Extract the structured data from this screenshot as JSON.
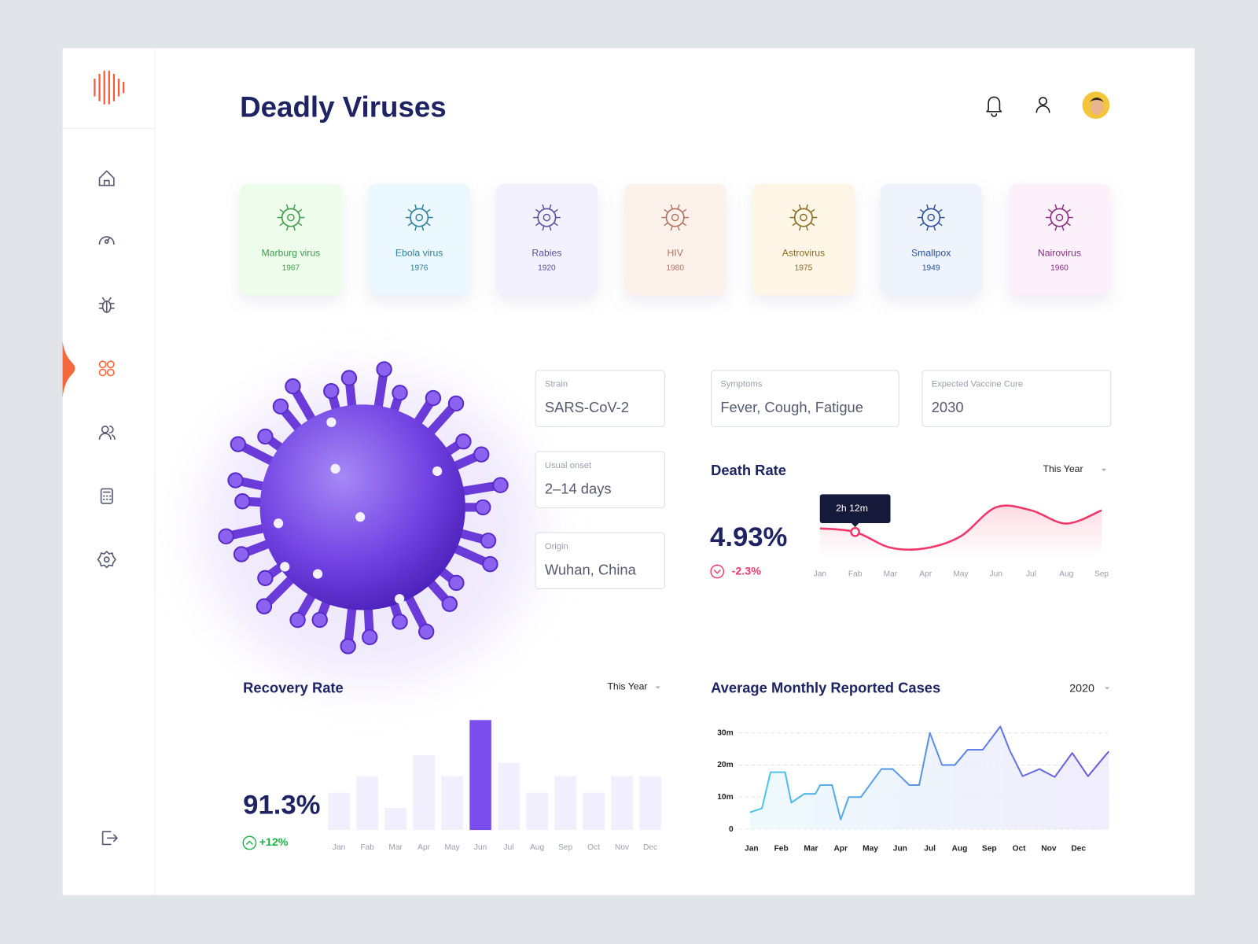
{
  "header": {
    "title": "Deadly Viruses"
  },
  "viruses": [
    {
      "name": "Marburg virus",
      "year": 1967,
      "color": "#3f9d4b",
      "bg": "#eefcec"
    },
    {
      "name": "Ebola virus",
      "year": 1976,
      "color": "#2f7f99",
      "bg": "#ebf8fd"
    },
    {
      "name": "Rabies",
      "year": 1920,
      "color": "#5b4f9e",
      "bg": "#f3f1fd"
    },
    {
      "name": "HIV",
      "year": 1980,
      "color": "#b37460",
      "bg": "#fdf1ec"
    },
    {
      "name": "Astrovirus",
      "year": 1975,
      "color": "#8a6a20",
      "bg": "#fdf5e6"
    },
    {
      "name": "Smallpox",
      "year": 1949,
      "color": "#2d509e",
      "bg": "#eef3fc"
    },
    {
      "name": "Nairovirus",
      "year": 1960,
      "color": "#8a2c80",
      "bg": "#fcf0fb"
    }
  ],
  "info": [
    {
      "label": "Strain",
      "value": "SARS-CoV-2"
    },
    {
      "label": "Usual onset",
      "value": "2–14 days"
    },
    {
      "label": "Origin",
      "value": "Wuhan, China"
    },
    {
      "label": "Symptoms",
      "value": "Fever, Cough, Fatigue"
    },
    {
      "label": "Expected Vaccine Cure",
      "value": 2030
    }
  ],
  "chart_data": [
    {
      "type": "line",
      "title": "Death Rate",
      "period": "This Year",
      "value": "4.93%",
      "change": "-2.3%",
      "tooltip": "2h 12m",
      "categories": [
        "Jan",
        "Fab",
        "Mar",
        "Apr",
        "May",
        "Jun",
        "Jul",
        "Aug",
        "Sep"
      ],
      "values": [
        49,
        43,
        17,
        16,
        36,
        84,
        79,
        57,
        79
      ],
      "ylim": [
        0,
        100
      ],
      "color": "#f0386b"
    },
    {
      "type": "bar",
      "title": "Recovery Rate",
      "period": "This Year",
      "value": "91.3%",
      "change": "+12%",
      "categories": [
        "Jan",
        "Fab",
        "Mar",
        "Apr",
        "May",
        "Jun",
        "Jul",
        "Aug",
        "Sep",
        "Oct",
        "Nov",
        "Dec"
      ],
      "values": [
        34,
        49,
        20,
        68,
        49,
        100,
        61,
        34,
        49,
        34,
        49,
        49
      ],
      "ylim": [
        0,
        100
      ],
      "colors": [
        "#f1eefd",
        "#f1eefd",
        "#f1eefd",
        "#f1eefd",
        "#f1eefd",
        "#7c4dee",
        "#f1eefd",
        "#f1eefd",
        "#f1eefd",
        "#f1eefd",
        "#f1eefd",
        "#f1eefd"
      ]
    },
    {
      "type": "line",
      "title": "Average Monthly Reported Cases",
      "period": "2020",
      "x": [
        -0.05,
        0.35,
        0.64,
        1.13,
        1.34,
        1.77,
        2.15,
        2.31,
        2.71,
        3.0,
        3.27,
        3.68,
        4.37,
        4.75,
        5.31,
        5.64,
        6.0,
        6.41,
        6.84,
        7.27,
        7.78,
        8.37,
        8.69,
        9.12,
        9.69,
        10.2,
        10.79,
        11.32,
        12.02
      ],
      "values": [
        5250000,
        6500000,
        17750000,
        17750000,
        8250000,
        11000000,
        11000000,
        13750000,
        13750000,
        3000000,
        10000000,
        10000000,
        18750000,
        18750000,
        13750000,
        13750000,
        30000000,
        20000000,
        20000000,
        24750000,
        24750000,
        32000000,
        24500000,
        16500000,
        18750000,
        16250000,
        23750000,
        16500000,
        24250000
      ],
      "xlim": [
        -0.1,
        12.1
      ],
      "xticks": [
        {
          "value": 0,
          "label": "Jan"
        },
        {
          "value": 1,
          "label": "Feb"
        },
        {
          "value": 2,
          "label": "Mar"
        },
        {
          "value": 3,
          "label": "Apr"
        },
        {
          "value": 4,
          "label": "May"
        },
        {
          "value": 5,
          "label": "Jun"
        },
        {
          "value": 6,
          "label": "Jul"
        },
        {
          "value": 7,
          "label": "Aug"
        },
        {
          "value": 8,
          "label": "Sep"
        },
        {
          "value": 9,
          "label": "Oct"
        },
        {
          "value": 10,
          "label": "Nov"
        },
        {
          "value": 11,
          "label": "Dec"
        }
      ],
      "ylim": [
        0,
        30000000
      ],
      "yticks": [
        0,
        {
          "value": 10000000,
          "label": "10m"
        },
        {
          "value": 20000000,
          "label": "20m"
        },
        {
          "value": 30000000,
          "label": "30m"
        }
      ],
      "grid": true
    }
  ]
}
